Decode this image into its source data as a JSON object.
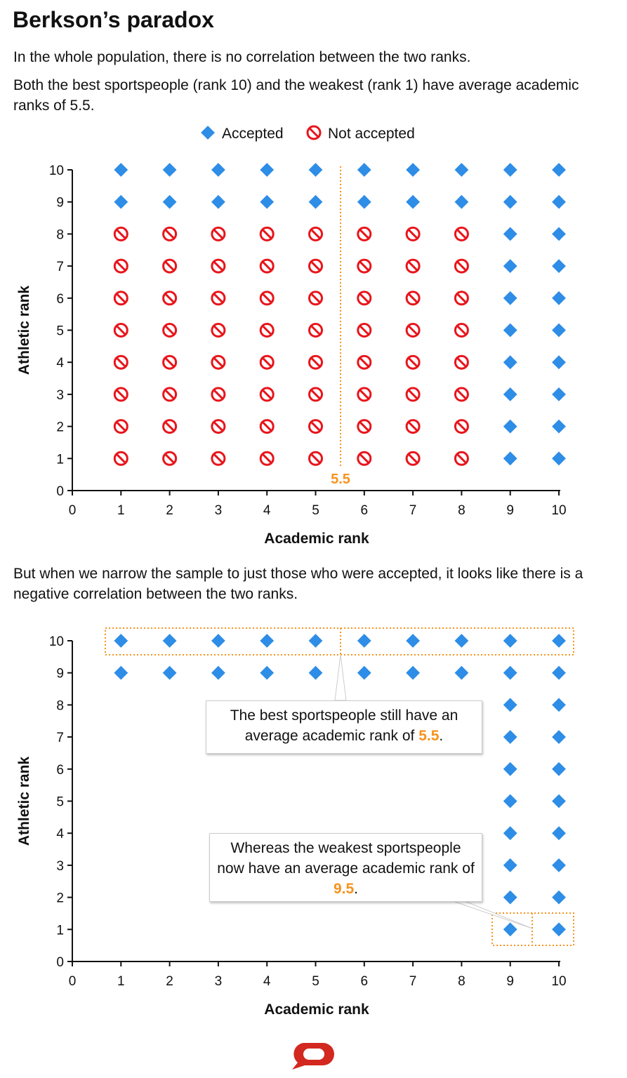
{
  "title": "Berkson’s paradox",
  "intro": [
    "In the whole population, there is no correlation between the two ranks.",
    "Both the best sportspeople (rank 10) and the weakest (rank 1) have average academic ranks of 5.5."
  ],
  "middle_text": "But when we narrow the sample to just those who were accepted, it looks like there is a negative correlation between the two ranks.",
  "legend": {
    "accepted": "Accepted",
    "not_accepted": "Not accepted"
  },
  "colors": {
    "accepted": "#2e8de6",
    "not_accepted": "#e8151b",
    "highlight": "#f7931e",
    "logo": "#d3281f"
  },
  "callouts": {
    "best_pre": "The best sportspeople still have an average academic rank of ",
    "best_value": "5.5",
    "weak_pre": "Whereas the weakest sportspeople now have an average academic rank of ",
    "weak_value": "9.5",
    "end": "."
  },
  "chart_data": [
    {
      "type": "scatter",
      "xlabel": "Academic rank",
      "ylabel": "Athletic rank",
      "xlim": [
        0,
        10
      ],
      "ylim": [
        0,
        10
      ],
      "xticks": [
        "0",
        "1",
        "2",
        "3",
        "4",
        "5",
        "6",
        "7",
        "8",
        "9",
        "10"
      ],
      "yticks": [
        "0",
        "1",
        "2",
        "3",
        "4",
        "5",
        "6",
        "7",
        "8",
        "9",
        "10"
      ],
      "grid": false,
      "legend_position": "top",
      "rule": "accepted if athletic rank >= 9 or academic rank >= 9",
      "series": [
        {
          "name": "Accepted",
          "marker": "diamond"
        },
        {
          "name": "Not accepted",
          "marker": "prohibited"
        }
      ],
      "grid_points": {
        "x": [
          1,
          2,
          3,
          4,
          5,
          6,
          7,
          8,
          9,
          10
        ],
        "y": [
          1,
          2,
          3,
          4,
          5,
          6,
          7,
          8,
          9,
          10
        ]
      },
      "annotations": [
        {
          "type": "vline",
          "x": 5.5,
          "label": "5.5"
        }
      ]
    },
    {
      "type": "scatter",
      "xlabel": "Academic rank",
      "ylabel": "Athletic rank",
      "xlim": [
        0,
        10
      ],
      "ylim": [
        0,
        10
      ],
      "xticks": [
        "0",
        "1",
        "2",
        "3",
        "4",
        "5",
        "6",
        "7",
        "8",
        "9",
        "10"
      ],
      "yticks": [
        "0",
        "1",
        "2",
        "3",
        "4",
        "5",
        "6",
        "7",
        "8",
        "9",
        "10"
      ],
      "grid": false,
      "series": [
        {
          "name": "Accepted",
          "marker": "diamond"
        }
      ],
      "grid_points": {
        "x": [
          1,
          2,
          3,
          4,
          5,
          6,
          7,
          8,
          9,
          10
        ],
        "y": [
          1,
          2,
          3,
          4,
          5,
          6,
          7,
          8,
          9,
          10
        ]
      },
      "annotations": [
        {
          "type": "box",
          "row_y": 10,
          "mean_x": 5.5
        },
        {
          "type": "box",
          "row_y": 1,
          "mean_x": 9.5
        }
      ]
    }
  ]
}
